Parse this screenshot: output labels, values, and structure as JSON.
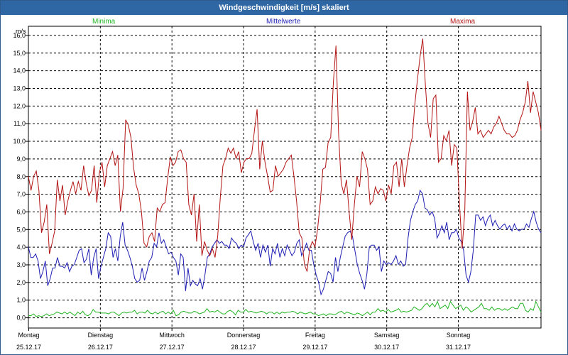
{
  "window": {
    "title": "Windgeschwindigkeit [m/s] skaliert"
  },
  "chart_data": {
    "type": "line",
    "ylabel": "m/s",
    "ylim": [
      -0.6,
      16.5
    ],
    "yticks": [
      "0,0",
      "1,0",
      "2,0",
      "3,0",
      "4,0",
      "5,0",
      "6,0",
      "7,0",
      "8,0",
      "9,0",
      "10,0",
      "11,0",
      "12,0",
      "13,0",
      "14,0",
      "15,0",
      "16,0"
    ],
    "xlim": [
      0,
      7.16
    ],
    "days": [
      {
        "name": "Montag",
        "date": "25.12.17"
      },
      {
        "name": "Dienstag",
        "date": "26.12.17"
      },
      {
        "name": "Mittwoch",
        "date": "27.12.17"
      },
      {
        "name": "Donnerstag",
        "date": "28.12.17"
      },
      {
        "name": "Freitag",
        "date": "29.12.17"
      },
      {
        "name": "Samstag",
        "date": "30.12.17"
      },
      {
        "name": "Sonntag",
        "date": "31.12.17"
      }
    ],
    "grid": true,
    "legend_placement": "top",
    "series": [
      {
        "name": "Minima",
        "color": "#22b422",
        "values": [
          0.1,
          0.1,
          0.2,
          0.05,
          0.1,
          0.05,
          0.1,
          0.2,
          0.1,
          0.15,
          0.2,
          0.3,
          0.25,
          0.2,
          0.3,
          0.2,
          0.3,
          0.2,
          0.1,
          0.3,
          0.2,
          0.35,
          0.15,
          0.1,
          0.2,
          0.45,
          0.3,
          0.3,
          0.25,
          0.25,
          0.25,
          0.2,
          0.3,
          0.3,
          0.2,
          0.1,
          0.25,
          0.3,
          0.25,
          0.3,
          0.3,
          0.4,
          0.2,
          0.3,
          0.3,
          0.25,
          0.4,
          0.25,
          0.2,
          0.3,
          0.2,
          0.3,
          0.35,
          0.2,
          0.3,
          0.2,
          0.4,
          0.1,
          0.15,
          0.3,
          0.35,
          0.3,
          0.25,
          0.25,
          0.35,
          0.3,
          0.2,
          0.25,
          0.3,
          0.5,
          0.3,
          0.35,
          0.3,
          0.4,
          0.3,
          0.2,
          0.2,
          0.35,
          0.4,
          0.3,
          0.15,
          0.4,
          0.3,
          0.3,
          0.45,
          0.3,
          0.35,
          0.3,
          0.25,
          0.3,
          0.35,
          0.3,
          0.2,
          0.3,
          0.3,
          0.2,
          0.3,
          0.2,
          0.3,
          0.25,
          0.3,
          0.3,
          0.35,
          0.3,
          0.2,
          0.3,
          0.25,
          0.2,
          0.25,
          0.3,
          0.2,
          0.2,
          0.1,
          0.15,
          0.2,
          0.1,
          0.2,
          0.2,
          0.15,
          0.2,
          0.3,
          0.35,
          0.2,
          0.3,
          0.25,
          0.2,
          0.15,
          0.25,
          0.2,
          0.1,
          0.2,
          0.3,
          0.15,
          0.3,
          0.3,
          0.5,
          0.35,
          0.4,
          0.3,
          0.45,
          0.3,
          0.35,
          0.4,
          0.5,
          0.3,
          0.35,
          0.3,
          0.35,
          0.4,
          0.6,
          0.5,
          0.4,
          0.5,
          0.7,
          0.8,
          0.6,
          0.8,
          0.6,
          0.9,
          0.5,
          0.6,
          0.7,
          0.5,
          0.9,
          0.7,
          0.5,
          0.6,
          0.7,
          0.4,
          0.6,
          0.5,
          0.3,
          0.4,
          0.5,
          0.6,
          0.8,
          0.5,
          0.5,
          0.4,
          0.6,
          0.4,
          0.5,
          0.5,
          0.4,
          0.5,
          0.4,
          0.5,
          0.6,
          0.5,
          0.5,
          0.8,
          0.8,
          0.4,
          0.3,
          0.5,
          0.4,
          0.9,
          0.6,
          0.3
        ]
      },
      {
        "name": "Mittelwerte",
        "color": "#1e1eb4",
        "values": [
          4.0,
          3.4,
          3.4,
          3.6,
          3.2,
          2.2,
          2.6,
          3.2,
          1.8,
          2.2,
          2.8,
          2.8,
          3.4,
          2.9,
          2.9,
          2.8,
          3.1,
          2.6,
          2.9,
          3.0,
          3.4,
          3.8,
          3.9,
          3.1,
          3.3,
          3.9,
          2.4,
          3.4,
          3.9,
          2.2,
          2.9,
          3.4,
          3.9,
          4.8,
          4.6,
          3.4,
          3.9,
          3.2,
          4.6,
          5.4,
          4.1,
          3.8,
          3.4,
          2.9,
          2.2,
          2.0,
          2.1,
          2.8,
          2.1,
          2.6,
          3.2,
          3.4,
          4.2,
          4.0,
          4.8,
          4.2,
          4.4,
          4.0,
          3.6,
          3.7,
          3.4,
          3.2,
          2.4,
          3.6,
          3.4,
          1.5,
          2.8,
          1.8,
          2.1,
          1.9,
          1.8,
          2.2,
          1.6,
          2.4,
          3.4,
          3.6,
          4.0,
          4.2,
          4.4,
          4.2,
          4.3,
          4.1,
          4.1,
          3.9,
          4.5,
          4.3,
          4.2,
          3.9,
          4.1,
          4.0,
          4.5,
          4.7,
          4.9,
          4.3,
          3.8,
          4.2,
          3.4,
          4.1,
          3.7,
          4.1,
          2.9,
          3.9,
          3.6,
          4.2,
          3.4,
          3.9,
          3.5,
          4.1,
          3.8,
          3.5,
          3.7,
          4.2,
          4.4,
          3.5,
          3.8,
          4.2,
          3.8,
          3.8,
          3.0,
          2.4,
          2.0,
          1.3,
          1.6,
          2.1,
          2.6,
          2.5,
          2.0,
          3.4,
          2.6,
          3.4,
          4.0,
          4.6,
          4.8,
          4.9,
          4.6,
          3.8,
          3.0,
          2.5,
          2.1,
          1.6,
          2.5,
          4.0,
          4.1,
          4.1,
          3.8,
          4.0,
          2.6,
          3.2,
          3.0,
          3.1,
          3.0,
          3.2,
          3.5,
          3.0,
          3.2,
          2.9,
          3.0,
          4.5,
          5.5,
          6.0,
          6.4,
          6.6,
          7.2,
          7.0,
          6.2,
          6.1,
          5.8,
          6.0,
          5.6,
          4.5,
          4.8,
          5.2,
          4.8,
          5.4,
          4.4,
          4.8,
          4.8,
          5.0,
          4.5,
          4.3,
          3.8,
          2.4,
          2.0,
          2.6,
          3.8,
          5.8,
          5.8,
          5.5,
          5.7,
          5.2,
          5.6,
          5.8,
          5.2,
          5.5,
          5.2,
          5.0,
          5.2,
          5.3,
          5.0,
          5.2,
          4.9,
          5.3,
          5.0,
          4.9,
          5.0,
          5.0,
          5.3,
          5.1,
          5.6,
          6.0,
          5.4,
          5.0,
          4.8
        ]
      },
      {
        "name": "Maxima",
        "color": "#b41414",
        "values": [
          8.0,
          7.2,
          8.0,
          8.3,
          7.2,
          4.8,
          5.4,
          6.4,
          3.6,
          4.2,
          4.9,
          7.8,
          6.6,
          7.5,
          5.8,
          6.6,
          7.2,
          7.7,
          7.0,
          7.7,
          7.2,
          8.6,
          7.6,
          6.9,
          7.2,
          8.6,
          6.5,
          8.2,
          8.8,
          7.4,
          8.6,
          9.0,
          9.4,
          8.6,
          9.2,
          6.0,
          7.3,
          11.2,
          10.9,
          10.2,
          8.5,
          7.5,
          7.0,
          6.0,
          4.2,
          4.0,
          4.6,
          4.8,
          4.3,
          6.2,
          6.0,
          6.4,
          6.5,
          7.9,
          9.1,
          8.6,
          8.8,
          9.4,
          9.5,
          9.0,
          8.8,
          6.4,
          5.8,
          7.0,
          4.3,
          6.4,
          3.5,
          4.3,
          3.8,
          3.5,
          3.9,
          3.4,
          4.6,
          6.8,
          8.6,
          9.0,
          9.6,
          9.3,
          9.6,
          9.0,
          9.4,
          8.2,
          8.8,
          9.0,
          9.0,
          9.3,
          10.6,
          11.8,
          8.4,
          10.0,
          8.8,
          8.0,
          7.1,
          7.2,
          8.6,
          8.0,
          8.2,
          8.4,
          8.8,
          9.0,
          9.2,
          8.0,
          6.6,
          4.8,
          4.5,
          3.0,
          2.6,
          3.9,
          4.3,
          4.0,
          5.0,
          6.5,
          8.4,
          8.5,
          9.9,
          10.2,
          13.3,
          15.4,
          10.4,
          7.6,
          7.0,
          7.8,
          6.0,
          4.4,
          6.4,
          8.0,
          7.4,
          9.4,
          9.0,
          8.4,
          6.4,
          6.6,
          7.4,
          7.0,
          7.3,
          7.2,
          6.6,
          7.5,
          7.0,
          8.6,
          8.8,
          7.4,
          9.0,
          7.4,
          8.6,
          9.6,
          10.2,
          12.1,
          13.5,
          14.8,
          15.8,
          13.2,
          11.0,
          10.2,
          12.4,
          12.6,
          8.8,
          9.0,
          10.3,
          10.0,
          10.6,
          8.6,
          9.8,
          9.6,
          6.4,
          3.9,
          6.0,
          12.8,
          10.6,
          11.1,
          11.9,
          10.4,
          10.6,
          10.2,
          10.4,
          10.6,
          10.4,
          10.8,
          11.0,
          11.4,
          11.0,
          10.6,
          10.4,
          10.4,
          10.2,
          10.3,
          10.6,
          11.2,
          11.6,
          12.2,
          13.4,
          11.6,
          12.8,
          12.2,
          11.6,
          10.6
        ]
      }
    ]
  }
}
